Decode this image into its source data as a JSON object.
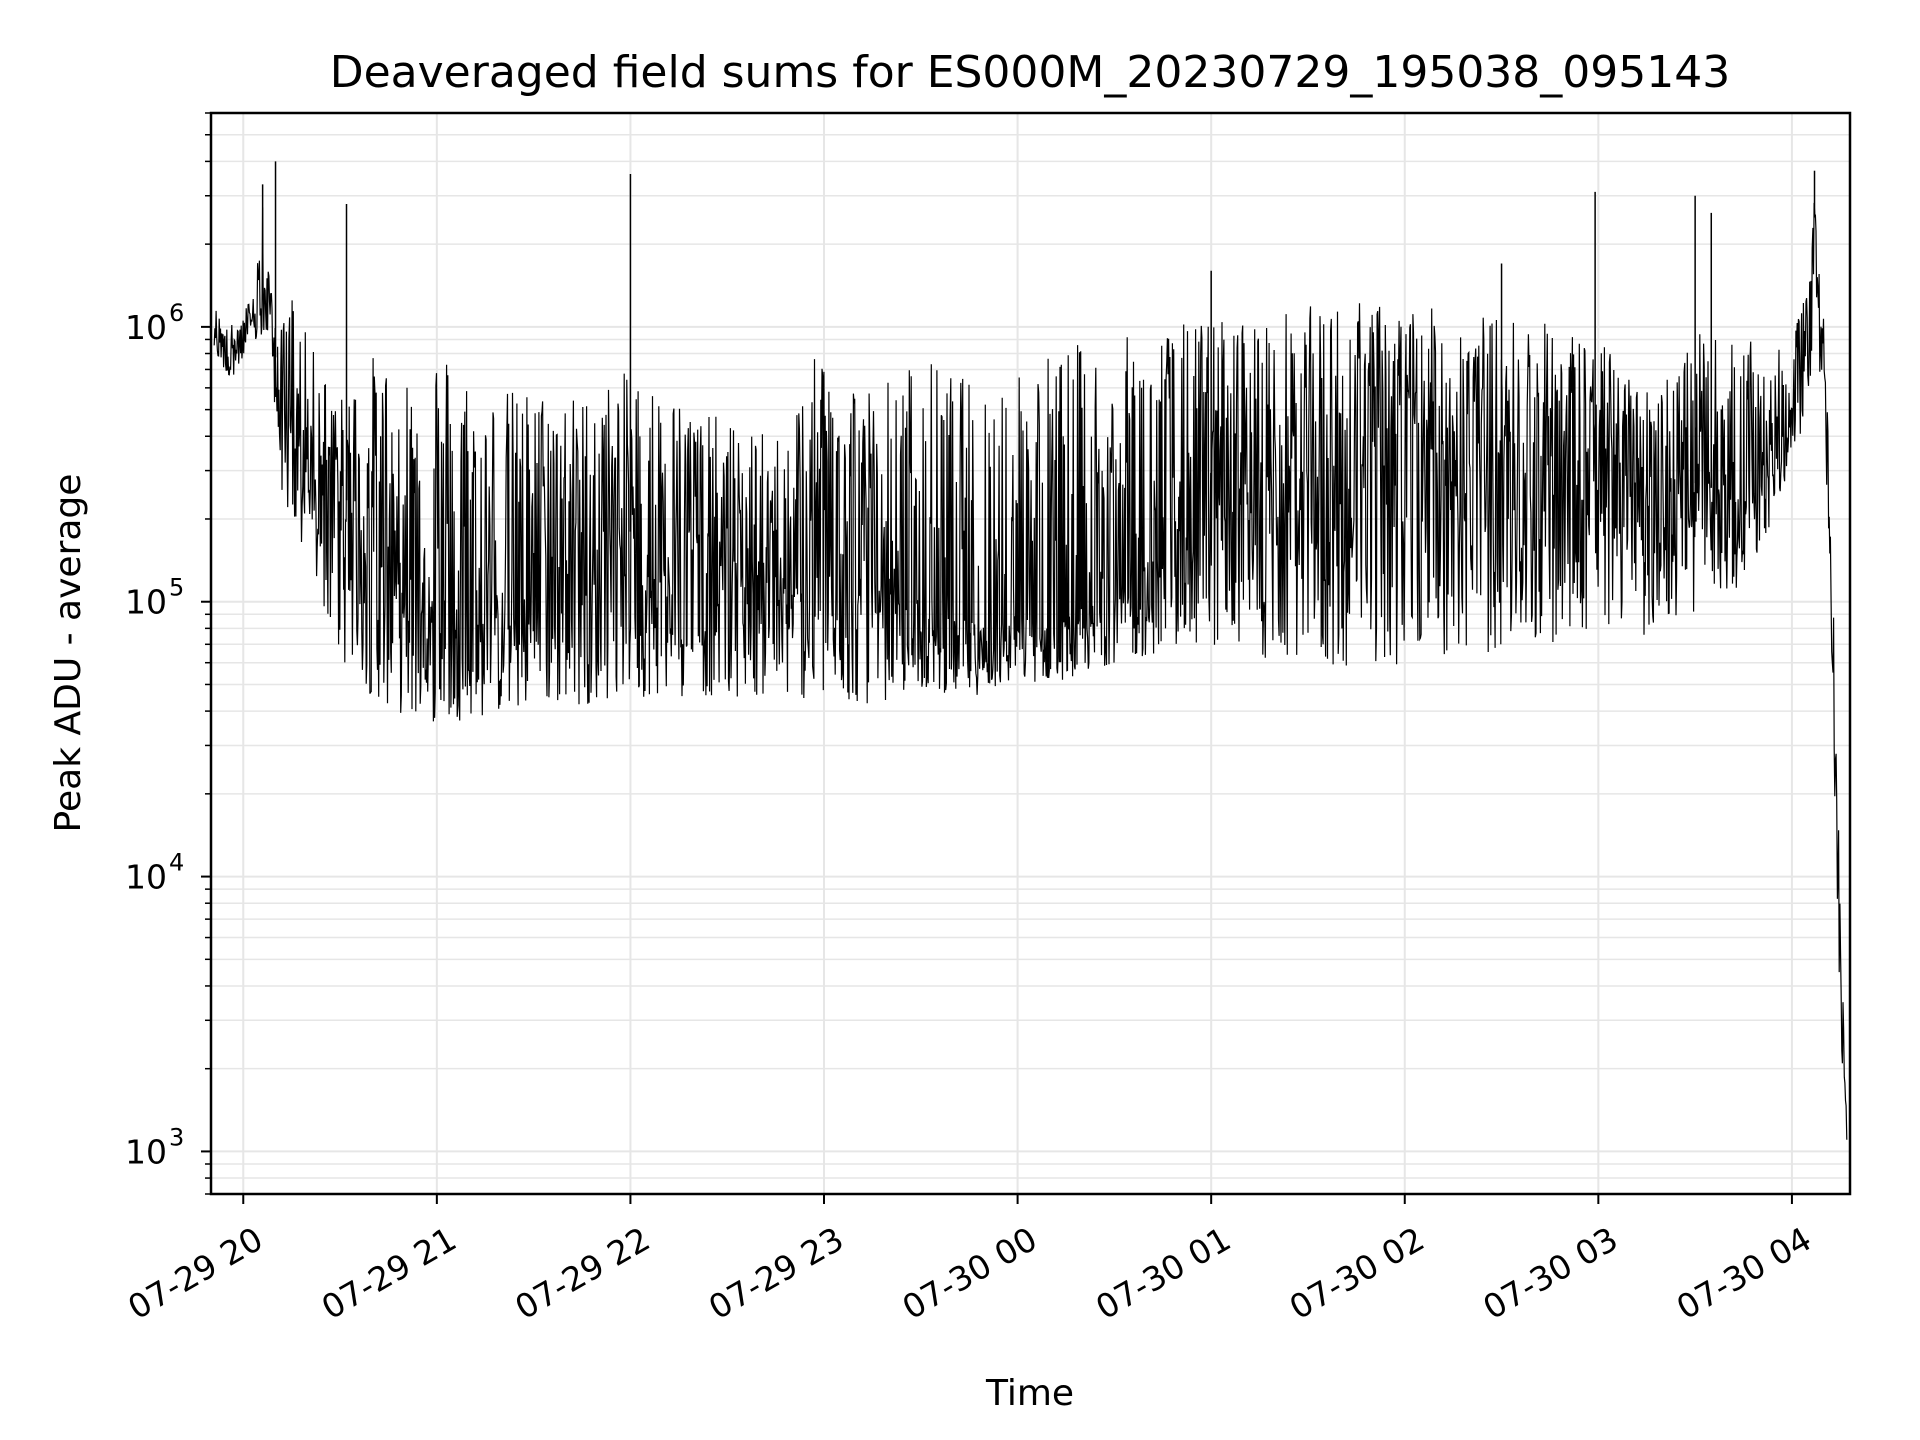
{
  "chart_data": {
    "type": "line",
    "title": "Deaveraged field sums for ES000M_20230729_195038_095143",
    "xlabel": "Time",
    "ylabel": "Peak ADU - average",
    "yscale": "log",
    "grid": true,
    "line_color": "#000000",
    "grid_color": "#e6e6e6",
    "xlim": [
      "2023-07-29 19:50",
      "2023-07-30 04:18"
    ],
    "ylim": [
      700,
      6000000
    ],
    "x_ticks": [
      {
        "value": "2023-07-29 20:00",
        "label": "07-29 20"
      },
      {
        "value": "2023-07-29 21:00",
        "label": "07-29 21"
      },
      {
        "value": "2023-07-29 22:00",
        "label": "07-29 22"
      },
      {
        "value": "2023-07-29 23:00",
        "label": "07-29 23"
      },
      {
        "value": "2023-07-30 00:00",
        "label": "07-30 00"
      },
      {
        "value": "2023-07-30 01:00",
        "label": "07-30 01"
      },
      {
        "value": "2023-07-30 02:00",
        "label": "07-30 02"
      },
      {
        "value": "2023-07-30 03:00",
        "label": "07-30 03"
      },
      {
        "value": "2023-07-30 04:00",
        "label": "07-30 04"
      }
    ],
    "y_ticks": [
      {
        "value": 1000,
        "base": "10",
        "exp": "3"
      },
      {
        "value": 10000,
        "base": "10",
        "exp": "4"
      },
      {
        "value": 100000,
        "base": "10",
        "exp": "5"
      },
      {
        "value": 1000000,
        "base": "10",
        "exp": "6"
      }
    ],
    "series": [
      {
        "x": [
          "2023-07-29 19:51",
          "2023-07-29 19:55",
          "2023-07-29 20:00",
          "2023-07-29 20:03",
          "2023-07-29 20:06",
          "2023-07-29 20:08",
          "2023-07-29 20:12",
          "2023-07-29 20:15",
          "2023-07-29 20:20",
          "2023-07-29 20:25",
          "2023-07-29 20:30",
          "2023-07-29 20:40",
          "2023-07-29 20:50",
          "2023-07-29 21:00",
          "2023-07-29 21:15",
          "2023-07-29 21:30",
          "2023-07-29 21:45",
          "2023-07-29 22:00",
          "2023-07-29 22:15",
          "2023-07-29 22:30",
          "2023-07-29 22:45",
          "2023-07-29 23:00",
          "2023-07-29 23:15",
          "2023-07-29 23:30",
          "2023-07-29 23:45",
          "2023-07-30 00:00",
          "2023-07-30 00:15",
          "2023-07-30 00:30",
          "2023-07-30 00:45",
          "2023-07-30 01:00",
          "2023-07-30 01:15",
          "2023-07-30 01:30",
          "2023-07-30 01:45",
          "2023-07-30 02:00",
          "2023-07-30 02:15",
          "2023-07-30 02:30",
          "2023-07-30 02:45",
          "2023-07-30 03:00",
          "2023-07-30 03:15",
          "2023-07-30 03:30",
          "2023-07-30 03:45",
          "2023-07-30 04:00",
          "2023-07-30 04:05",
          "2023-07-30 04:07",
          "2023-07-30 04:10",
          "2023-07-30 04:12",
          "2023-07-30 04:15",
          "2023-07-30 04:17"
        ],
        "y": [
          1000000,
          800000,
          900000,
          1100000,
          1300000,
          1200000,
          500000,
          450000,
          350000,
          320000,
          250000,
          180000,
          140000,
          110000,
          100000,
          150000,
          170000,
          180000,
          160000,
          140000,
          130000,
          130000,
          120000,
          90000,
          85000,
          90000,
          90000,
          110000,
          160000,
          230000,
          260000,
          300000,
          330000,
          350000,
          360000,
          330000,
          320000,
          330000,
          290000,
          270000,
          240000,
          500000,
          900000,
          2500000,
          700000,
          120000,
          5000,
          1200
        ],
        "upper": [
          1200000,
          1000000,
          1100000,
          1400000,
          3000000,
          1500000,
          1000000,
          1400000,
          900000,
          700000,
          550000,
          800000,
          700000,
          950000,
          600000,
          600000,
          560000,
          700000,
          560000,
          450000,
          400000,
          900000,
          620000,
          800000,
          650000,
          800000,
          870000,
          900000,
          1000000,
          1100000,
          1100000,
          1200000,
          1250000,
          1200000,
          1150000,
          1100000,
          1050000,
          900000,
          600000,
          950000,
          900000,
          800000,
          1800000,
          3200000,
          1000000,
          300000,
          8000,
          1500
        ],
        "lower": [
          800000,
          650000,
          700000,
          900000,
          800000,
          900000,
          250000,
          180000,
          130000,
          90000,
          60000,
          45000,
          38000,
          36000,
          38000,
          40000,
          42000,
          45000,
          45000,
          45000,
          45000,
          43000,
          42000,
          48000,
          45000,
          50000,
          52000,
          60000,
          65000,
          70000,
          60000,
          58000,
          55000,
          60000,
          62000,
          65000,
          70000,
          80000,
          75000,
          90000,
          110000,
          300000,
          500000,
          900000,
          450000,
          80000,
          3000,
          900
        ],
        "spikes": [
          {
            "x": "2023-07-29 20:06",
            "y": 3300000
          },
          {
            "x": "2023-07-29 20:10",
            "y": 4000000
          },
          {
            "x": "2023-07-29 20:32",
            "y": 2800000
          },
          {
            "x": "2023-07-29 22:00",
            "y": 3600000
          },
          {
            "x": "2023-07-30 01:00",
            "y": 1600000
          },
          {
            "x": "2023-07-30 02:30",
            "y": 1700000
          },
          {
            "x": "2023-07-30 02:59",
            "y": 3100000
          },
          {
            "x": "2023-07-30 03:30",
            "y": 3000000
          },
          {
            "x": "2023-07-30 03:35",
            "y": 2600000
          },
          {
            "x": "2023-07-30 04:07",
            "y": 3700000
          }
        ]
      }
    ]
  }
}
